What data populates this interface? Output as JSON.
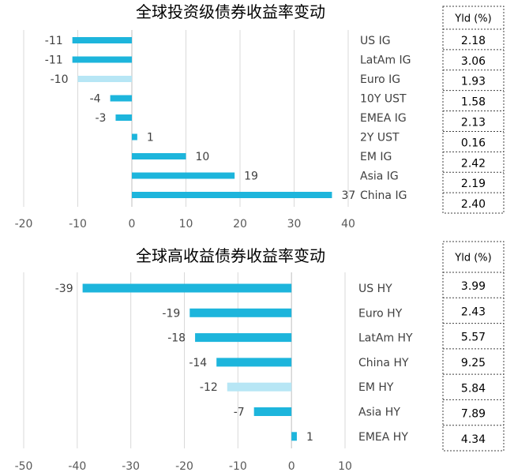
{
  "bar_color": "#1DB5DC",
  "highlight_color": "#B7E6F5",
  "yield_header": "Yld (%)",
  "chart_data": [
    {
      "type": "bar",
      "title": "全球投资级债券收益率变动",
      "categories": [
        "US IG",
        "LatAm IG",
        "Euro IG",
        "10Y UST",
        "EMEA IG",
        "2Y UST",
        "EM IG",
        "Asia IG",
        "China IG"
      ],
      "values": [
        -11,
        -11,
        -10,
        -4,
        -3,
        1,
        10,
        19,
        37
      ],
      "highlight": [
        "Euro IG"
      ],
      "xticks": [
        -20,
        -10,
        0,
        10,
        20,
        30,
        40
      ],
      "xlim": [
        -20,
        40
      ],
      "grid": true,
      "yield_values": [
        "2.18",
        "3.06",
        "1.93",
        "1.58",
        "2.13",
        "0.16",
        "2.42",
        "2.19",
        "2.40"
      ]
    },
    {
      "type": "bar",
      "title": "全球高收益债券收益率变动",
      "categories": [
        "US HY",
        "Euro HY",
        "LatAm HY",
        "China HY",
        "EM HY",
        "Asia HY",
        "EMEA HY"
      ],
      "values": [
        -39,
        -19,
        -18,
        -14,
        -12,
        -7,
        1
      ],
      "highlight": [
        "EM HY"
      ],
      "xticks": [
        -50,
        -40,
        -30,
        -20,
        -10,
        0,
        10
      ],
      "xlim": [
        -50,
        10
      ],
      "grid": true,
      "yield_values": [
        "3.99",
        "2.43",
        "5.57",
        "9.25",
        "5.84",
        "7.89",
        "4.34"
      ]
    }
  ]
}
